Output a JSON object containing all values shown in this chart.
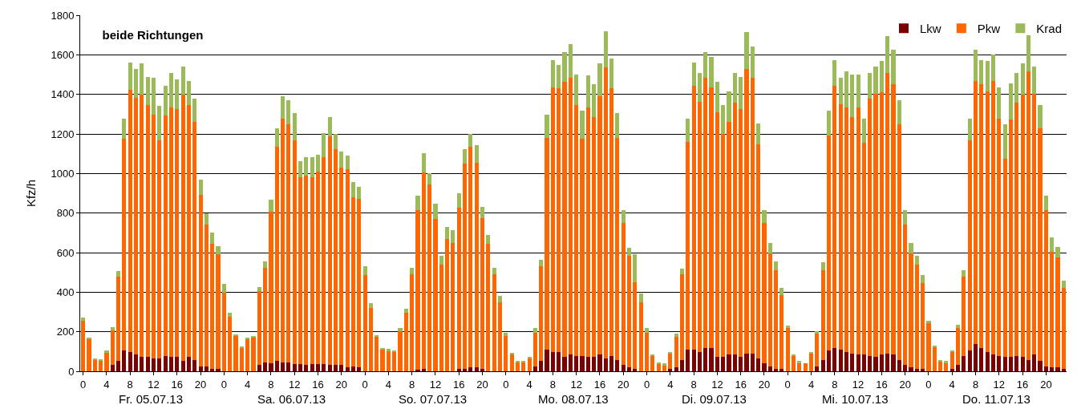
{
  "chart_data": {
    "type": "bar",
    "stacked": true,
    "title": "beide Richtungen",
    "ylabel": "Kfz/h",
    "categories": [
      "0",
      null,
      null,
      null,
      "4",
      null,
      null,
      null,
      "8",
      null,
      null,
      null,
      "12",
      null,
      null,
      null,
      "16",
      null,
      null,
      null,
      "20",
      null,
      null,
      null,
      "0",
      null,
      null,
      null,
      "4",
      null,
      null,
      null,
      "8",
      null,
      null,
      null,
      "12",
      null,
      null,
      null,
      "16",
      null,
      null,
      null,
      "20",
      null,
      null,
      null,
      "0",
      null,
      null,
      null,
      "4",
      null,
      null,
      null,
      "8",
      null,
      null,
      null,
      "12",
      null,
      null,
      null,
      "16",
      null,
      null,
      null,
      "20",
      null,
      null,
      null,
      "0",
      null,
      null,
      null,
      "4",
      null,
      null,
      null,
      "8",
      null,
      null,
      null,
      "12",
      null,
      null,
      null,
      "16",
      null,
      null,
      null,
      "20",
      null,
      null,
      null,
      "0",
      null,
      null,
      null,
      "4",
      null,
      null,
      null,
      "8",
      null,
      null,
      null,
      "12",
      null,
      null,
      null,
      "16",
      null,
      null,
      null,
      "20",
      null,
      null,
      null,
      "0",
      null,
      null,
      null,
      "4",
      null,
      null,
      null,
      "8",
      null,
      null,
      null,
      "12",
      null,
      null,
      null,
      "16",
      null,
      null,
      null,
      "20",
      null,
      null,
      null,
      "0",
      null,
      null,
      null,
      "4",
      null,
      null,
      null,
      "8",
      null,
      null,
      null,
      "12",
      null,
      null,
      null,
      "16",
      null,
      null,
      null,
      "20",
      null,
      null,
      null
    ],
    "series": [
      {
        "name": "Lkw",
        "color": "#7b0000",
        "values": [
          0,
          0,
          0,
          0,
          0,
          32,
          52,
          106,
          98,
          85,
          71,
          71,
          66,
          66,
          78,
          71,
          71,
          52,
          71,
          58,
          26,
          26,
          12,
          12,
          0,
          0,
          0,
          0,
          0,
          0,
          32,
          46,
          39,
          52,
          46,
          46,
          36,
          36,
          32,
          36,
          36,
          36,
          32,
          32,
          32,
          19,
          26,
          19,
          0,
          0,
          0,
          0,
          0,
          0,
          0,
          0,
          0,
          10,
          12,
          0,
          0,
          0,
          0,
          0,
          12,
          12,
          19,
          19,
          12,
          0,
          0,
          0,
          0,
          0,
          0,
          0,
          0,
          26,
          52,
          109,
          98,
          98,
          71,
          85,
          78,
          78,
          71,
          71,
          85,
          65,
          78,
          58,
          32,
          19,
          12,
          0,
          0,
          0,
          0,
          0,
          12,
          19,
          58,
          110,
          110,
          98,
          117,
          117,
          71,
          71,
          85,
          85,
          71,
          91,
          91,
          65,
          39,
          26,
          12,
          12,
          0,
          0,
          0,
          0,
          0,
          26,
          58,
          105,
          117,
          110,
          98,
          91,
          85,
          85,
          78,
          71,
          85,
          91,
          85,
          58,
          32,
          19,
          12,
          12,
          0,
          0,
          0,
          0,
          12,
          32,
          78,
          105,
          137,
          117,
          98,
          85,
          78,
          71,
          71,
          78,
          71,
          58,
          85,
          52,
          26,
          19,
          19,
          12
        ]
      },
      {
        "name": "Pkw",
        "color": "#ff6600",
        "values": [
          257,
          163,
          58,
          54,
          97,
          175,
          427,
          1070,
          1324,
          1299,
          1329,
          1275,
          1233,
          1103,
          1215,
          1262,
          1254,
          1345,
          1275,
          1201,
          867,
          715,
          631,
          578,
          399,
          275,
          178,
          118,
          163,
          169,
          373,
          479,
          767,
          1083,
          1233,
          1201,
          1131,
          947,
          958,
          947,
          974,
          1047,
          1156,
          1090,
          998,
          1003,
          852,
          853,
          486,
          320,
          178,
          110,
          105,
          98,
          203,
          296,
          491,
          804,
          993,
          944,
          772,
          538,
          668,
          650,
          814,
          1037,
          1116,
          1037,
          761,
          643,
          491,
          347,
          178,
          86,
          46,
          46,
          66,
          170,
          478,
          1071,
          1338,
          1332,
          1391,
          1397,
          1266,
          1098,
          1261,
          1214,
          1306,
          1470,
          1352,
          1122,
          716,
          565,
          440,
          347,
          196,
          78,
          39,
          32,
          79,
          157,
          433,
          1051,
          1333,
          1266,
          1365,
          1319,
          1240,
          1129,
          1174,
          1273,
          1254,
          1437,
          1391,
          1082,
          709,
          571,
          499,
          374,
          217,
          78,
          44,
          39,
          91,
          164,
          453,
          1088,
          1326,
          1240,
          1234,
          1194,
          1247,
          1069,
          1299,
          1333,
          1326,
          1418,
          1365,
          1189,
          709,
          578,
          526,
          433,
          242,
          124,
          52,
          44,
          86,
          185,
          401,
          1062,
          1332,
          1333,
          1318,
          1384,
          1201,
          1005,
          1201,
          1280,
          1326,
          1458,
          1319,
          1175,
          788,
          585,
          558,
          408
        ]
      },
      {
        "name": "Krad",
        "color": "#9bbb59",
        "values": [
          13,
          7,
          7,
          6,
          7,
          16,
          27,
          103,
          140,
          145,
          155,
          143,
          183,
          171,
          149,
          176,
          150,
          144,
          123,
          120,
          77,
          59,
          59,
          41,
          41,
          20,
          9,
          7,
          8,
          9,
          21,
          32,
          60,
          92,
          112,
          125,
          139,
          80,
          93,
          100,
          86,
          123,
          98,
          76,
          80,
          67,
          80,
          60,
          47,
          23,
          6,
          7,
          7,
          7,
          14,
          19,
          34,
          72,
          97,
          59,
          74,
          46,
          60,
          64,
          72,
          73,
          63,
          86,
          60,
          46,
          34,
          34,
          18,
          7,
          6,
          6,
          7,
          21,
          34,
          119,
          138,
          118,
          152,
          171,
          158,
          142,
          164,
          165,
          164,
          185,
          151,
          126,
          66,
          39,
          138,
          46,
          21,
          7,
          5,
          7,
          7,
          14,
          27,
          118,
          119,
          145,
          132,
          152,
          151,
          145,
          157,
          151,
          164,
          187,
          158,
          105,
          66,
          53,
          46,
          34,
          13,
          7,
          8,
          0,
          7,
          13,
          39,
          125,
          131,
          132,
          183,
          217,
          170,
          125,
          132,
          137,
          157,
          184,
          177,
          124,
          73,
          53,
          46,
          41,
          14,
          6,
          6,
          8,
          7,
          20,
          32,
          112,
          157,
          124,
          151,
          131,
          157,
          171,
          184,
          151,
          158,
          184,
          137,
          118,
          72,
          72,
          53,
          40
        ]
      }
    ],
    "ylim": [
      0,
      1800
    ],
    "yticks": [
      0,
      200,
      400,
      600,
      800,
      1000,
      1200,
      1400,
      1600,
      1800
    ],
    "grid": "y",
    "legend": "top right",
    "annotations": [
      "Fr. 05.07.13",
      "Sa. 06.07.13",
      "So. 07.07.13",
      "Mo. 08.07.13",
      "Di. 09.07.13",
      "Mi. 10.07.13",
      "Do. 11.07.13"
    ]
  }
}
